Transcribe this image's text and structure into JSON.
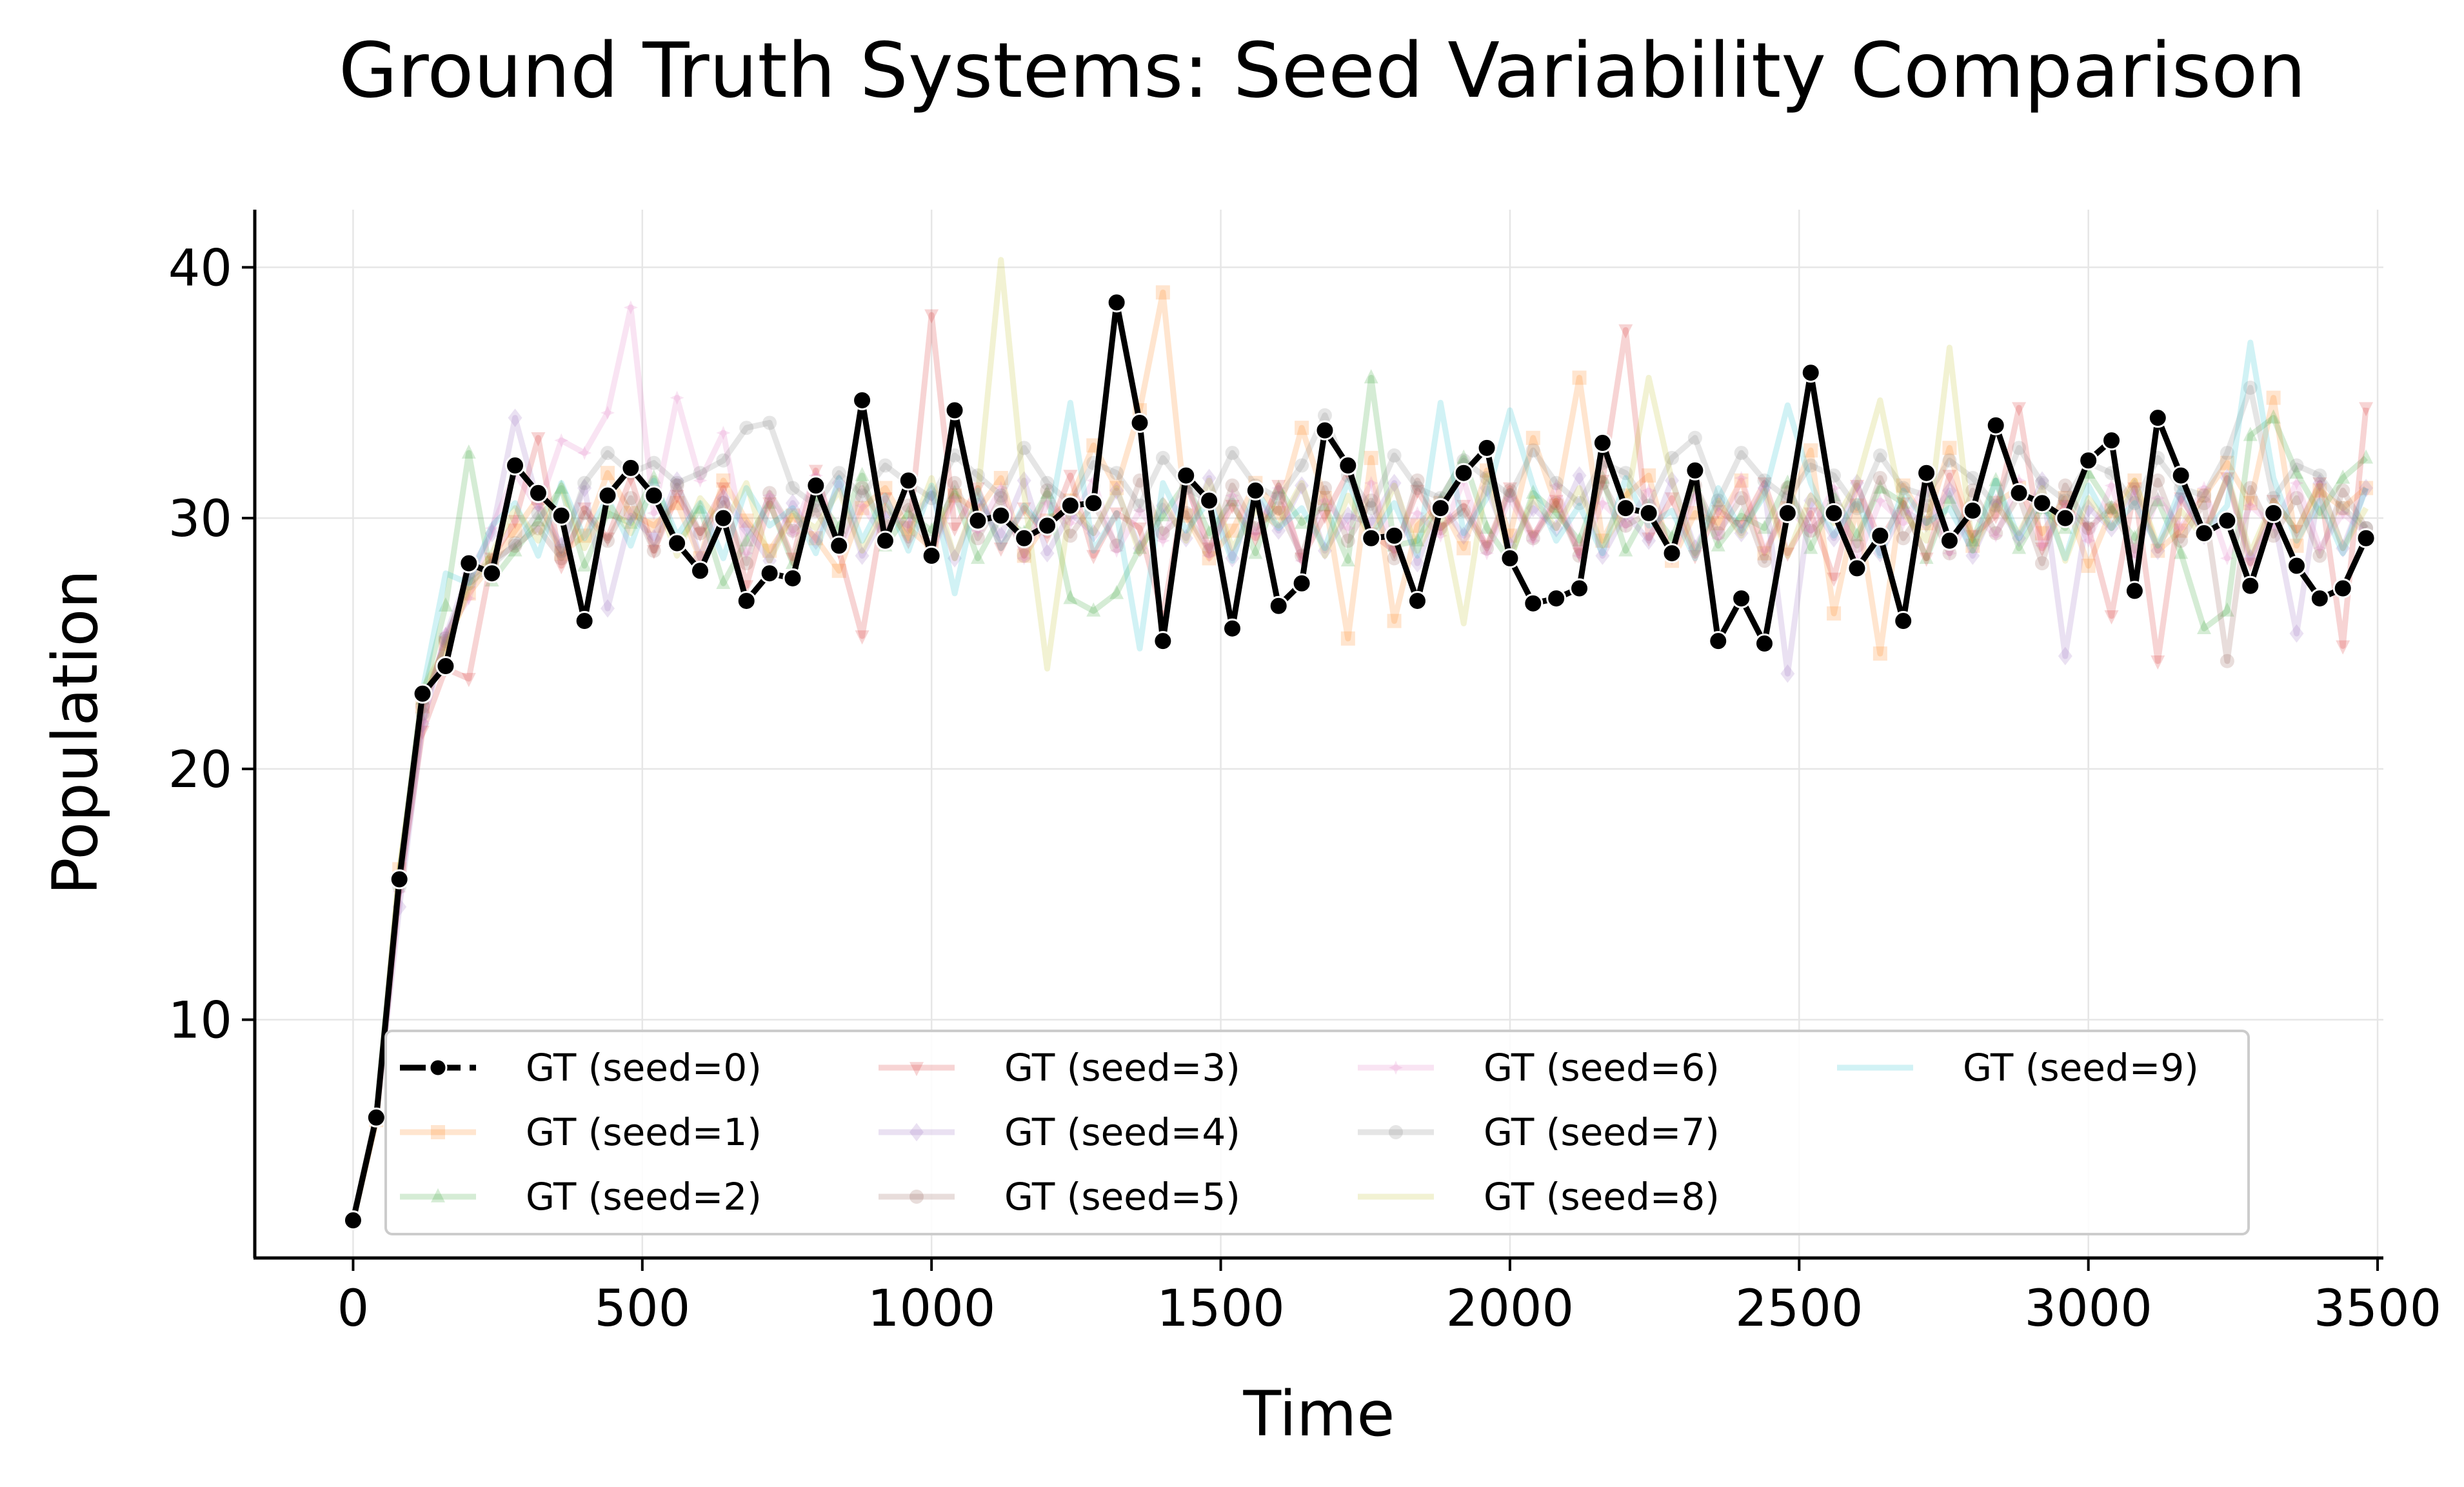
{
  "chart_data": {
    "type": "line",
    "title": "Ground Truth Systems: Seed Variability Comparison",
    "xlabel": "Time",
    "ylabel": "Population",
    "xlim": [
      -170,
      3510
    ],
    "ylim": [
      0.5,
      42.3
    ],
    "xticks": [
      0,
      500,
      1000,
      1500,
      2000,
      2500,
      3000,
      3500
    ],
    "yticks": [
      10,
      20,
      30,
      40
    ],
    "grid": true,
    "legend_position": "lower-center",
    "legend_columns": 4,
    "x": [
      0,
      40,
      80,
      120,
      160,
      200,
      240,
      280,
      320,
      360,
      400,
      440,
      480,
      520,
      560,
      600,
      640,
      680,
      720,
      760,
      800,
      840,
      880,
      920,
      960,
      1000,
      1040,
      1080,
      1120,
      1160,
      1200,
      1240,
      1280,
      1320,
      1360,
      1400,
      1440,
      1480,
      1520,
      1560,
      1600,
      1640,
      1680,
      1720,
      1760,
      1800,
      1840,
      1880,
      1920,
      1960,
      2000,
      2040,
      2080,
      2120,
      2160,
      2200,
      2240,
      2280,
      2320,
      2360,
      2400,
      2440,
      2480,
      2520,
      2560,
      2600,
      2640,
      2680,
      2720,
      2760,
      2800,
      2840,
      2880,
      2920,
      2960,
      3000,
      3040,
      3080,
      3120,
      3160,
      3200,
      3240,
      3280,
      3320,
      3360,
      3400,
      3440,
      3480
    ],
    "series": [
      {
        "name": "GT (seed=0)",
        "color": "#000000",
        "marker": "circle",
        "highlight": true,
        "values": [
          2.0,
          6.1,
          15.6,
          23.0,
          24.1,
          28.2,
          27.8,
          32.1,
          31.0,
          30.1,
          25.9,
          30.9,
          32.0,
          30.9,
          29.0,
          27.9,
          30.0,
          26.7,
          27.8,
          27.6,
          31.3,
          28.9,
          34.7,
          29.1,
          31.5,
          28.5,
          34.3,
          29.9,
          30.1,
          29.2,
          29.7,
          30.5,
          30.6,
          38.6,
          33.8,
          25.1,
          31.7,
          30.7,
          25.6,
          31.1,
          26.5,
          27.4,
          33.5,
          32.1,
          29.2,
          29.3,
          26.7,
          30.4,
          31.8,
          32.8,
          28.4,
          26.6,
          26.8,
          27.2,
          33.0,
          30.4,
          30.2,
          28.6,
          31.9,
          25.1,
          26.8,
          25.0,
          30.2,
          35.8,
          30.2,
          28.0,
          29.3,
          25.9,
          31.8,
          29.1,
          30.3,
          33.7,
          31.0,
          30.6,
          30.0,
          32.3,
          33.1,
          27.1,
          34.0,
          31.7,
          29.4,
          29.9,
          27.3,
          30.2,
          28.1,
          26.8,
          27.2,
          29.2
        ]
      },
      {
        "name": "GT (seed=1)",
        "color": "#ff7f0e",
        "marker": "square",
        "values": [
          2.0,
          6.0,
          16.0,
          22.5,
          25.0,
          27.0,
          28.2,
          29.5,
          30.8,
          28.6,
          29.3,
          31.8,
          30.2,
          29.7,
          30.6,
          28.4,
          31.5,
          29.9,
          28.7,
          30.1,
          29.2,
          27.9,
          30.4,
          31.2,
          29.6,
          28.8,
          30.9,
          30.3,
          31.6,
          28.5,
          29.9,
          30.7,
          32.9,
          31.2,
          34.3,
          39.0,
          30.1,
          28.4,
          29.5,
          31.4,
          30.2,
          33.6,
          30.8,
          25.2,
          32.4,
          25.9,
          29.7,
          30.6,
          28.8,
          31.9,
          29.3,
          33.2,
          30.5,
          35.6,
          29.1,
          30.9,
          31.7,
          28.3,
          30.2,
          29.8,
          31.5,
          28.6,
          30.4,
          32.7,
          26.2,
          30.5,
          24.6,
          31.3,
          29.8,
          32.8,
          28.9,
          30.6,
          31.2,
          29.4,
          30.8,
          28.1,
          30.3,
          31.5,
          28.7,
          29.5,
          30.9,
          32.2,
          30.6,
          34.8,
          28.9,
          31.1,
          30.4,
          31.2
        ]
      },
      {
        "name": "GT (seed=2)",
        "color": "#2ca02c",
        "marker": "triangle-up",
        "values": [
          2.0,
          6.2,
          15.8,
          22.8,
          26.5,
          32.6,
          27.5,
          28.7,
          29.9,
          31.2,
          28.1,
          30.2,
          29.8,
          31.6,
          28.9,
          30.4,
          27.4,
          29.1,
          30.6,
          28.2,
          30.9,
          29.6,
          31.7,
          28.9,
          30.2,
          29.5,
          31.0,
          28.4,
          30.1,
          29.4,
          31.0,
          26.8,
          26.3,
          27.0,
          28.8,
          30.1,
          31.4,
          29.4,
          30.7,
          28.6,
          31.2,
          29.8,
          30.5,
          28.3,
          35.6,
          28.9,
          29.1,
          30.7,
          32.4,
          29.6,
          28.3,
          31.0,
          30.2,
          29.1,
          31.6,
          28.7,
          30.4,
          29.2,
          31.3,
          28.9,
          30.1,
          29.6,
          31.4,
          28.8,
          30.9,
          29.3,
          31.2,
          30.6,
          28.4,
          30.8,
          29.1,
          31.5,
          28.8,
          30.4,
          29.6,
          31.8,
          30.4,
          29.2,
          30.7,
          28.6,
          25.6,
          26.3,
          33.3,
          34.0,
          31.8,
          30.2,
          31.6,
          32.4
        ]
      },
      {
        "name": "GT (seed=3)",
        "color": "#d62728",
        "marker": "triangle-down",
        "values": [
          2.0,
          6.0,
          15.2,
          21.5,
          24.0,
          23.6,
          28.4,
          29.9,
          33.2,
          28.1,
          30.4,
          29.2,
          31.6,
          28.7,
          30.9,
          29.4,
          31.2,
          27.3,
          30.6,
          28.4,
          31.9,
          28.7,
          25.3,
          30.8,
          29.1,
          38.1,
          29.6,
          31.2,
          28.8,
          30.4,
          29.3,
          31.7,
          28.5,
          30.2,
          29.6,
          26.1,
          31.4,
          28.8,
          30.5,
          29.2,
          31.3,
          28.4,
          30.1,
          31.8,
          29.4,
          28.7,
          31.1,
          29.6,
          30.5,
          28.9,
          31.2,
          29.3,
          30.7,
          28.6,
          31.5,
          37.5,
          29.2,
          30.8,
          28.5,
          30.3,
          29.7,
          31.4,
          28.6,
          30.2,
          27.6,
          31.3,
          29.1,
          30.6,
          28.4,
          31.7,
          29.3,
          30.1,
          34.4,
          28.8,
          30.5,
          29.6,
          26.1,
          31.2,
          24.3,
          30.8,
          29.4,
          31.6,
          28.2,
          30.7,
          29.5,
          31.4,
          24.9,
          34.4
        ]
      },
      {
        "name": "GT (seed=4)",
        "color": "#9467bd",
        "marker": "diamond",
        "values": [
          2.0,
          6.1,
          14.5,
          21.8,
          25.3,
          27.8,
          29.4,
          34.0,
          30.6,
          28.9,
          31.2,
          26.4,
          30.1,
          29.2,
          31.5,
          28.4,
          30.8,
          29.6,
          28.3,
          30.6,
          29.1,
          31.4,
          28.5,
          30.2,
          29.7,
          31.0,
          28.4,
          30.7,
          29.3,
          31.5,
          28.6,
          30.2,
          29.4,
          31.1,
          28.8,
          30.5,
          29.2,
          31.6,
          28.4,
          30.9,
          29.5,
          31.3,
          28.7,
          30.1,
          29.8,
          31.4,
          28.2,
          30.6,
          29.3,
          31.2,
          28.9,
          30.4,
          29.6,
          31.7,
          28.5,
          30.2,
          29.1,
          31.5,
          28.8,
          30.6,
          29.4,
          31.2,
          23.8,
          30.7,
          29.2,
          31.4,
          28.6,
          30.3,
          29.8,
          31.1,
          28.5,
          30.6,
          29.2,
          31.5,
          24.5,
          30.4,
          29.6,
          31.2,
          28.7,
          30.9,
          29.3,
          31.6,
          28.4,
          30.1,
          25.4,
          31.4,
          28.8,
          31.2
        ]
      },
      {
        "name": "GT (seed=5)",
        "color": "#8c564b",
        "marker": "pentagon",
        "values": [
          2.0,
          6.1,
          15.5,
          22.5,
          25.1,
          27.6,
          28.3,
          28.9,
          29.6,
          28.4,
          30.2,
          29.1,
          30.8,
          28.7,
          31.3,
          29.4,
          30.6,
          28.2,
          31.0,
          29.5,
          30.3,
          28.8,
          31.2,
          29.7,
          30.5,
          28.6,
          31.4,
          29.2,
          30.8,
          28.5,
          31.1,
          29.3,
          30.6,
          28.9,
          31.5,
          29.4,
          30.2,
          28.7,
          31.3,
          29.6,
          30.4,
          28.5,
          31.2,
          29.1,
          30.7,
          28.4,
          31.5,
          29.6,
          30.3,
          28.8,
          31.1,
          29.2,
          30.6,
          28.5,
          31.4,
          29.7,
          30.2,
          28.6,
          31.3,
          29.4,
          30.8,
          28.3,
          31.2,
          29.5,
          30.4,
          28.9,
          31.6,
          29.2,
          30.5,
          28.6,
          31.1,
          29.4,
          30.9,
          28.2,
          31.3,
          29.6,
          30.4,
          28.7,
          31.5,
          29.1,
          30.6,
          24.3,
          31.2,
          29.3,
          30.8,
          28.5,
          31.1,
          29.6
        ]
      },
      {
        "name": "GT (seed=6)",
        "color": "#e377c2",
        "marker": "star",
        "values": [
          2.0,
          6.2,
          15.1,
          21.9,
          25.4,
          26.8,
          29.6,
          31.8,
          30.4,
          33.1,
          32.6,
          34.2,
          38.4,
          30.2,
          34.8,
          31.5,
          33.4,
          28.6,
          30.9,
          29.4,
          31.7,
          28.8,
          30.5,
          29.2,
          31.4,
          28.6,
          30.8,
          29.5,
          31.2,
          28.4,
          30.6,
          29.8,
          31.5,
          28.7,
          30.3,
          29.1,
          31.6,
          28.5,
          30.9,
          29.4,
          31.2,
          28.3,
          30.7,
          29.6,
          31.4,
          28.8,
          30.2,
          29.3,
          31.5,
          28.6,
          30.8,
          29.1,
          31.3,
          28.5,
          30.6,
          29.7,
          31.1,
          28.4,
          30.9,
          29.2,
          31.6,
          28.7,
          30.4,
          29.5,
          31.2,
          28.3,
          30.7,
          29.8,
          31.4,
          28.6,
          30.2,
          29.3,
          31.5,
          28.9,
          30.6,
          29.1,
          31.3,
          28.5,
          30.8,
          29.6,
          31.2,
          28.4,
          30.5,
          29.7,
          31.4,
          28.8,
          30.2,
          29.4
        ]
      },
      {
        "name": "GT (seed=7)",
        "color": "#7f7f7f",
        "marker": "hexagon",
        "values": [
          2.0,
          6.1,
          15.3,
          22.2,
          25.2,
          27.4,
          28.1,
          29.0,
          30.2,
          28.7,
          31.4,
          32.6,
          31.8,
          32.2,
          31.4,
          31.8,
          32.3,
          33.6,
          33.8,
          31.2,
          30.5,
          31.8,
          30.9,
          32.1,
          31.4,
          30.8,
          32.5,
          31.7,
          30.9,
          32.8,
          31.4,
          30.6,
          32.2,
          31.8,
          30.5,
          32.4,
          31.2,
          30.7,
          32.6,
          31.3,
          30.8,
          32.1,
          34.1,
          31.7,
          30.4,
          32.5,
          31.2,
          30.8,
          32.3,
          31.6,
          30.9,
          32.7,
          31.4,
          30.6,
          32.2,
          31.8,
          30.5,
          32.4,
          33.2,
          30.7,
          32.6,
          31.5,
          30.8,
          32.1,
          31.7,
          30.4,
          32.5,
          31.2,
          30.9,
          32.3,
          31.6,
          30.5,
          32.8,
          31.4,
          30.7,
          32.2,
          31.8,
          30.6,
          32.4,
          31.2,
          30.9,
          32.6,
          35.2,
          30.8,
          32.1,
          31.7,
          30.4,
          29.6
        ]
      },
      {
        "name": "GT (seed=8)",
        "color": "#bcbd22",
        "marker": "none",
        "values": [
          2.0,
          6.0,
          15.9,
          23.2,
          24.8,
          27.2,
          28.6,
          30.4,
          29.1,
          31.3,
          28.8,
          30.6,
          29.4,
          31.2,
          28.5,
          30.8,
          29.7,
          31.4,
          28.3,
          30.2,
          29.6,
          31.1,
          28.7,
          30.5,
          29.2,
          31.6,
          28.4,
          30.9,
          40.3,
          31.0,
          24.0,
          30.6,
          29.4,
          31.2,
          28.6,
          30.7,
          29.1,
          31.5,
          28.8,
          30.3,
          29.7,
          31.4,
          28.5,
          30.9,
          29.2,
          31.3,
          28.7,
          30.5,
          25.8,
          31.7,
          28.4,
          30.8,
          29.6,
          31.2,
          28.9,
          30.4,
          35.6,
          31.5,
          28.6,
          30.7,
          29.3,
          31.1,
          28.5,
          30.9,
          29.8,
          31.4,
          34.7,
          30.2,
          29.1,
          36.8,
          28.7,
          30.5,
          29.4,
          31.2,
          28.3,
          30.8,
          29.6,
          31.5,
          28.9,
          30.3,
          29.2,
          31.7,
          28.6,
          30.7,
          29.5,
          31.3,
          28.8,
          30.4
        ]
      },
      {
        "name": "GT (seed=9)",
        "color": "#17becf",
        "marker": "none",
        "values": [
          2.0,
          6.1,
          15.7,
          23.1,
          27.8,
          27.4,
          29.7,
          30.6,
          28.5,
          31.4,
          29.2,
          30.8,
          28.9,
          31.5,
          29.3,
          30.6,
          28.4,
          31.2,
          29.7,
          30.4,
          28.6,
          31.6,
          29.1,
          30.9,
          28.7,
          31.3,
          27.0,
          31.1,
          28.8,
          30.5,
          29.4,
          34.6,
          28.7,
          30.2,
          24.8,
          31.4,
          29.5,
          30.7,
          28.3,
          31.2,
          29.6,
          30.4,
          28.8,
          31.5,
          29.2,
          30.6,
          28.5,
          34.6,
          29.4,
          30.8,
          34.3,
          31.3,
          29.1,
          30.5,
          28.6,
          31.6,
          29.7,
          30.3,
          28.4,
          31.2,
          29.5,
          30.9,
          34.5,
          31.4,
          29.3,
          30.7,
          28.5,
          31.1,
          29.8,
          30.4,
          28.7,
          31.5,
          29.2,
          30.8,
          28.4,
          31.3,
          29.6,
          30.6,
          28.9,
          31.2,
          29.4,
          30.5,
          37.0,
          31.6,
          29.1,
          30.7,
          28.6,
          31.2
        ]
      }
    ]
  }
}
